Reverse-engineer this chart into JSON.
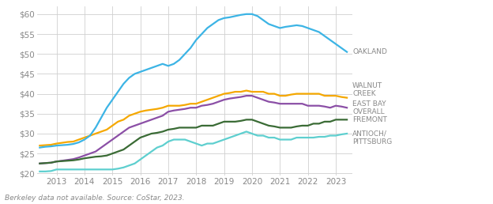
{
  "footnote": "Berkeley data not available. Source: CoStar, 2023.",
  "years": [
    2012.4,
    2012.6,
    2012.8,
    2013.0,
    2013.2,
    2013.4,
    2013.6,
    2013.8,
    2014.0,
    2014.2,
    2014.4,
    2014.6,
    2014.8,
    2015.0,
    2015.2,
    2015.4,
    2015.6,
    2015.8,
    2016.0,
    2016.2,
    2016.4,
    2016.6,
    2016.8,
    2017.0,
    2017.2,
    2017.4,
    2017.6,
    2017.8,
    2018.0,
    2018.2,
    2018.4,
    2018.6,
    2018.8,
    2019.0,
    2019.2,
    2019.4,
    2019.6,
    2019.8,
    2020.0,
    2020.2,
    2020.4,
    2020.6,
    2020.8,
    2021.0,
    2021.2,
    2021.4,
    2021.6,
    2021.8,
    2022.0,
    2022.2,
    2022.4,
    2022.6,
    2022.8,
    2023.0,
    2023.2,
    2023.4
  ],
  "oakland": [
    26.5,
    26.7,
    26.8,
    27.0,
    27.1,
    27.2,
    27.4,
    27.8,
    28.5,
    29.5,
    31.5,
    34.0,
    36.5,
    38.5,
    40.5,
    42.5,
    44.0,
    45.0,
    45.5,
    46.0,
    46.5,
    47.0,
    47.5,
    47.0,
    47.5,
    48.5,
    50.0,
    51.5,
    53.5,
    55.0,
    56.5,
    57.5,
    58.5,
    59.0,
    59.2,
    59.5,
    59.8,
    60.0,
    60.0,
    59.5,
    58.5,
    57.5,
    57.0,
    56.5,
    56.8,
    57.0,
    57.2,
    57.0,
    56.5,
    56.0,
    55.5,
    54.5,
    53.5,
    52.5,
    51.5,
    50.5
  ],
  "walnut_creek": [
    27.0,
    27.1,
    27.2,
    27.5,
    27.7,
    27.9,
    28.0,
    28.5,
    29.0,
    29.5,
    30.0,
    30.5,
    31.0,
    32.0,
    33.0,
    33.5,
    34.5,
    35.0,
    35.5,
    35.8,
    36.0,
    36.2,
    36.5,
    37.0,
    37.0,
    37.0,
    37.2,
    37.5,
    37.5,
    38.0,
    38.5,
    39.0,
    39.5,
    40.0,
    40.2,
    40.5,
    40.5,
    40.8,
    40.5,
    40.5,
    40.5,
    40.0,
    40.0,
    39.5,
    39.5,
    39.8,
    40.0,
    40.0,
    40.0,
    40.0,
    40.0,
    39.5,
    39.5,
    39.5,
    39.2,
    39.0
  ],
  "east_bay_overall": [
    22.5,
    22.6,
    22.7,
    23.0,
    23.2,
    23.4,
    23.6,
    24.0,
    24.5,
    25.0,
    25.5,
    26.5,
    27.5,
    28.5,
    29.5,
    30.5,
    31.5,
    32.0,
    32.5,
    33.0,
    33.5,
    34.0,
    34.5,
    35.5,
    35.8,
    36.0,
    36.2,
    36.5,
    36.5,
    37.0,
    37.2,
    37.5,
    38.0,
    38.5,
    38.8,
    39.0,
    39.2,
    39.5,
    39.5,
    39.0,
    38.5,
    38.0,
    37.8,
    37.5,
    37.5,
    37.5,
    37.5,
    37.5,
    37.0,
    37.0,
    37.0,
    36.8,
    36.5,
    37.0,
    36.8,
    36.5
  ],
  "fremont": [
    22.5,
    22.6,
    22.7,
    23.0,
    23.1,
    23.2,
    23.3,
    23.5,
    23.8,
    24.0,
    24.2,
    24.3,
    24.5,
    25.0,
    25.5,
    26.0,
    27.0,
    28.0,
    29.0,
    29.5,
    30.0,
    30.2,
    30.5,
    31.0,
    31.2,
    31.5,
    31.5,
    31.5,
    31.5,
    32.0,
    32.0,
    32.0,
    32.5,
    33.0,
    33.0,
    33.0,
    33.2,
    33.5,
    33.5,
    33.0,
    32.5,
    32.0,
    31.8,
    31.5,
    31.5,
    31.5,
    31.8,
    32.0,
    32.0,
    32.5,
    32.5,
    33.0,
    33.0,
    33.5,
    33.5,
    33.5
  ],
  "antioch_pittsburg": [
    20.5,
    20.5,
    20.6,
    21.0,
    21.0,
    21.0,
    21.0,
    21.0,
    21.0,
    21.0,
    21.0,
    21.0,
    21.0,
    21.0,
    21.2,
    21.5,
    22.0,
    22.5,
    23.5,
    24.5,
    25.5,
    26.5,
    27.0,
    28.0,
    28.5,
    28.5,
    28.5,
    28.0,
    27.5,
    27.0,
    27.5,
    27.5,
    28.0,
    28.5,
    29.0,
    29.5,
    30.0,
    30.5,
    30.0,
    29.5,
    29.5,
    29.0,
    29.0,
    28.5,
    28.5,
    28.5,
    29.0,
    29.0,
    29.0,
    29.0,
    29.2,
    29.2,
    29.5,
    29.5,
    29.8,
    30.0
  ],
  "colors": {
    "oakland": "#3cb4e5",
    "walnut_creek": "#f5a800",
    "east_bay_overall": "#8b4fa6",
    "fremont": "#3a6b35",
    "antioch_pittsburg": "#5ecfcf"
  },
  "ylim": [
    19.5,
    62
  ],
  "yticks": [
    20,
    25,
    30,
    35,
    40,
    45,
    50,
    55,
    60
  ],
  "xlim": [
    2012.3,
    2023.6
  ],
  "xticks": [
    2013,
    2014,
    2015,
    2016,
    2017,
    2018,
    2019,
    2020,
    2021,
    2022,
    2023
  ],
  "label_fontsize": 6.5,
  "tick_fontsize": 7.5,
  "footnote_fontsize": 6.5,
  "line_width": 1.6,
  "background_color": "#ffffff",
  "grid_color": "#d0d0d0",
  "label_color": "#888888"
}
